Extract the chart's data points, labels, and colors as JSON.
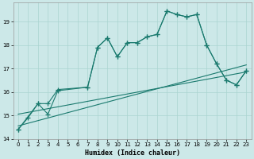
{
  "xlabel": "Humidex (Indice chaleur)",
  "background_color": "#cce8e8",
  "line_color": "#1a7a6e",
  "grid_color": "#aad4d0",
  "xlim": [
    -0.5,
    23.5
  ],
  "ylim": [
    14.0,
    19.8
  ],
  "yticks": [
    14,
    15,
    16,
    17,
    18,
    19
  ],
  "xticks": [
    0,
    1,
    2,
    3,
    4,
    5,
    6,
    7,
    8,
    9,
    10,
    11,
    12,
    13,
    14,
    15,
    16,
    17,
    18,
    19,
    20,
    21,
    22,
    23
  ],
  "series1_x": [
    0,
    1,
    2,
    3,
    4,
    7,
    8,
    9,
    10,
    11,
    12,
    13,
    14,
    15,
    16,
    17,
    18,
    19,
    20,
    21,
    22,
    23
  ],
  "series1_y": [
    14.4,
    14.9,
    15.5,
    15.5,
    16.1,
    16.2,
    17.9,
    18.3,
    17.5,
    18.1,
    18.1,
    18.35,
    18.45,
    19.45,
    19.3,
    19.2,
    19.3,
    18.0,
    17.2,
    16.5,
    16.3,
    16.9
  ],
  "series2_x": [
    0,
    2,
    3,
    4,
    7,
    8,
    9,
    10,
    11,
    12,
    13,
    14,
    15,
    16,
    17,
    18,
    19,
    20,
    21,
    22,
    23
  ],
  "series2_y": [
    14.4,
    15.5,
    15.05,
    16.05,
    16.2,
    17.9,
    18.3,
    17.5,
    18.1,
    18.1,
    18.35,
    18.45,
    19.45,
    19.3,
    19.2,
    19.3,
    18.0,
    17.2,
    16.5,
    16.3,
    16.9
  ],
  "trend1_x": [
    0,
    23
  ],
  "trend1_y": [
    14.55,
    17.15
  ],
  "trend2_x": [
    0,
    23
  ],
  "trend2_y": [
    15.05,
    16.85
  ]
}
